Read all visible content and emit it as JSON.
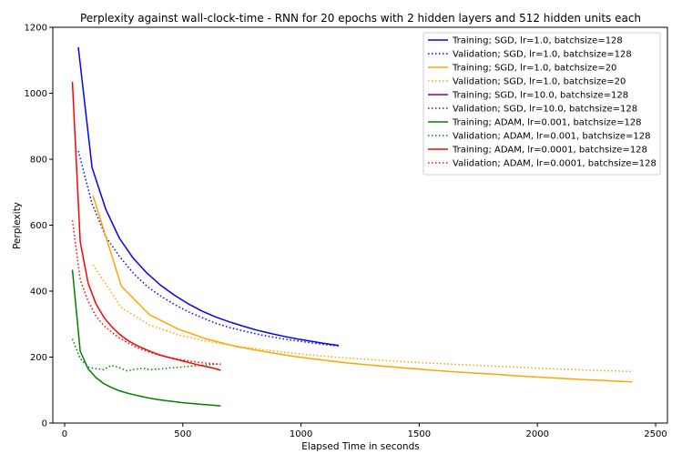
{
  "chart_data": {
    "type": "line",
    "title": "Perplexity against wall-clock-time - RNN for 20 epochs with 2 hidden layers and 512 hidden units each",
    "xlabel": "Elapsed Time in seconds",
    "ylabel": "Perplexity",
    "xlim": [
      -50,
      2550
    ],
    "ylim": [
      0,
      1200
    ],
    "xticks": [
      0,
      500,
      1000,
      1500,
      2000,
      2500
    ],
    "yticks": [
      0,
      200,
      400,
      600,
      800,
      1000,
      1200
    ],
    "grid": false,
    "legend_position": "top-right",
    "series": [
      {
        "name": "Training; SGD, lr=1.0, batchsize=128",
        "color": "#0000ff",
        "dash": "solid",
        "x": [
          58,
          116,
          174,
          232,
          290,
          348,
          406,
          464,
          522,
          580,
          638,
          696,
          754,
          812,
          870,
          928,
          986,
          1044,
          1102,
          1160
        ],
        "y": [
          1140,
          775,
          648,
          560,
          500,
          455,
          418,
          388,
          362,
          340,
          322,
          307,
          294,
          282,
          272,
          263,
          255,
          248,
          241,
          235
        ]
      },
      {
        "name": "Validation; SGD, lr=1.0, batchsize=128",
        "color": "#0000ff",
        "dash": "dotted",
        "x": [
          58,
          116,
          174,
          232,
          290,
          348,
          406,
          464,
          522,
          580,
          638,
          696,
          754,
          812,
          870,
          928,
          986,
          1044,
          1102,
          1160
        ],
        "y": [
          825,
          665,
          565,
          505,
          455,
          415,
          385,
          360,
          338,
          320,
          303,
          290,
          280,
          270,
          262,
          255,
          249,
          243,
          238,
          234
        ]
      },
      {
        "name": "Training; SGD, lr=1.0, batchsize=20",
        "color": "#ffa500",
        "dash": "solid",
        "x": [
          120,
          240,
          360,
          480,
          600,
          720,
          840,
          960,
          1080,
          1200,
          1320,
          1440,
          1560,
          1680,
          1800,
          1920,
          2040,
          2160,
          2280,
          2400
        ],
        "y": [
          690,
          415,
          328,
          285,
          255,
          233,
          217,
          203,
          192,
          182,
          174,
          167,
          160,
          154,
          149,
          143,
          138,
          133,
          129,
          125
        ]
      },
      {
        "name": "Validation; SGD, lr=1.0, batchsize=20",
        "color": "#ffa500",
        "dash": "dotted",
        "x": [
          120,
          240,
          360,
          480,
          600,
          720,
          840,
          960,
          1080,
          1200,
          1320,
          1440,
          1560,
          1680,
          1800,
          1920,
          2040,
          2160,
          2280,
          2400
        ],
        "y": [
          480,
          350,
          297,
          268,
          248,
          234,
          222,
          212,
          204,
          197,
          191,
          186,
          181,
          177,
          173,
          169,
          165,
          162,
          159,
          156
        ]
      },
      {
        "name": "Training; SGD, lr=10.0, batchsize=128",
        "color": "#800080",
        "dash": "solid",
        "x": [],
        "y": []
      },
      {
        "name": "Validation; SGD, lr=10.0, batchsize=128",
        "color": "#800080",
        "dash": "dotted",
        "x": [],
        "y": []
      },
      {
        "name": "Training; ADAM, lr=0.001, batchsize=128",
        "color": "#008000",
        "dash": "solid",
        "x": [
          33,
          66,
          99,
          132,
          165,
          198,
          231,
          264,
          297,
          330,
          363,
          396,
          429,
          462,
          495,
          528,
          561,
          594,
          627,
          660
        ],
        "y": [
          465,
          218,
          165,
          138,
          120,
          108,
          98,
          91,
          85,
          80,
          75,
          71,
          68,
          65,
          62,
          60,
          58,
          56,
          54,
          52
        ]
      },
      {
        "name": "Validation; ADAM, lr=0.001, batchsize=128",
        "color": "#008000",
        "dash": "dotted",
        "x": [
          33,
          66,
          99,
          132,
          165,
          198,
          231,
          264,
          297,
          330,
          363,
          396,
          429,
          462,
          495,
          528,
          561,
          594,
          627,
          660
        ],
        "y": [
          255,
          195,
          170,
          165,
          162,
          175,
          168,
          158,
          163,
          166,
          162,
          164,
          166,
          168,
          170,
          172,
          174,
          176,
          178,
          180
        ]
      },
      {
        "name": "Training; ADAM, lr=0.0001, batchsize=128",
        "color": "#ff0000",
        "dash": "solid",
        "x": [
          33,
          66,
          99,
          132,
          165,
          198,
          231,
          264,
          297,
          330,
          363,
          396,
          429,
          462,
          495,
          528,
          561,
          594,
          627,
          660
        ],
        "y": [
          1035,
          550,
          425,
          362,
          322,
          293,
          270,
          252,
          238,
          227,
          217,
          208,
          201,
          195,
          189,
          183,
          177,
          172,
          167,
          160
        ]
      },
      {
        "name": "Validation; ADAM, lr=0.0001, batchsize=128",
        "color": "#ff0000",
        "dash": "dotted",
        "x": [
          33,
          66,
          99,
          132,
          165,
          198,
          231,
          264,
          297,
          330,
          363,
          396,
          429,
          462,
          495,
          528,
          561,
          594,
          627,
          660
        ],
        "y": [
          615,
          435,
          370,
          325,
          296,
          276,
          258,
          245,
          232,
          222,
          214,
          207,
          201,
          196,
          192,
          188,
          185,
          182,
          180,
          178
        ]
      }
    ]
  }
}
